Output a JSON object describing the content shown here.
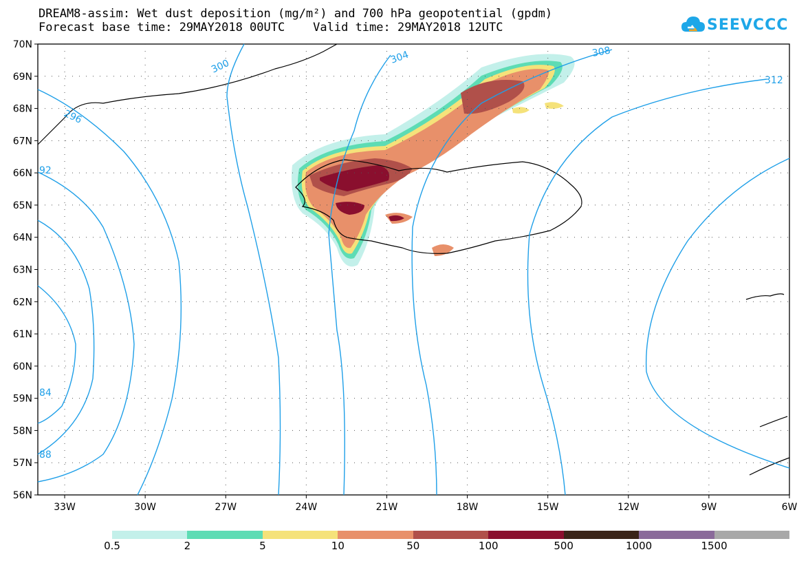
{
  "title": {
    "line1": "DREAM8-assim: Wet dust deposition (mg/m²) and 700 hPa geopotential (gpdm)",
    "line2": "Forecast base time: 29MAY2018 00UTC    Valid time: 29MAY2018 12UTC"
  },
  "logo": {
    "text": "SEEVCCC",
    "icon": "cloud-logo-icon",
    "color": "#1ea7e8"
  },
  "axes": {
    "lat_labels": [
      "70N",
      "69N",
      "68N",
      "67N",
      "66N",
      "65N",
      "64N",
      "63N",
      "62N",
      "61N",
      "60N",
      "59N",
      "58N",
      "57N",
      "56N"
    ],
    "lon_labels": [
      "33W",
      "30W",
      "27W",
      "24W",
      "21W",
      "18W",
      "15W",
      "12W",
      "9W",
      "6W"
    ]
  },
  "contour_labels": [
    "300",
    "304",
    "308",
    "312",
    "296",
    "92",
    "84",
    "88"
  ],
  "legend": {
    "labels": [
      "0.5",
      "2",
      "5",
      "10",
      "50",
      "100",
      "500",
      "1000",
      "1500"
    ],
    "colors": [
      "#c3f0ea",
      "#5ddcb4",
      "#f5e27a",
      "#e8906a",
      "#b0504a",
      "#8a0f2e",
      "#3a2418",
      "#8a6a9a",
      "#a8a8a8"
    ]
  },
  "colors": {
    "contour": "#1e9fe8",
    "coastline": "#000000",
    "grid": "#555555"
  }
}
